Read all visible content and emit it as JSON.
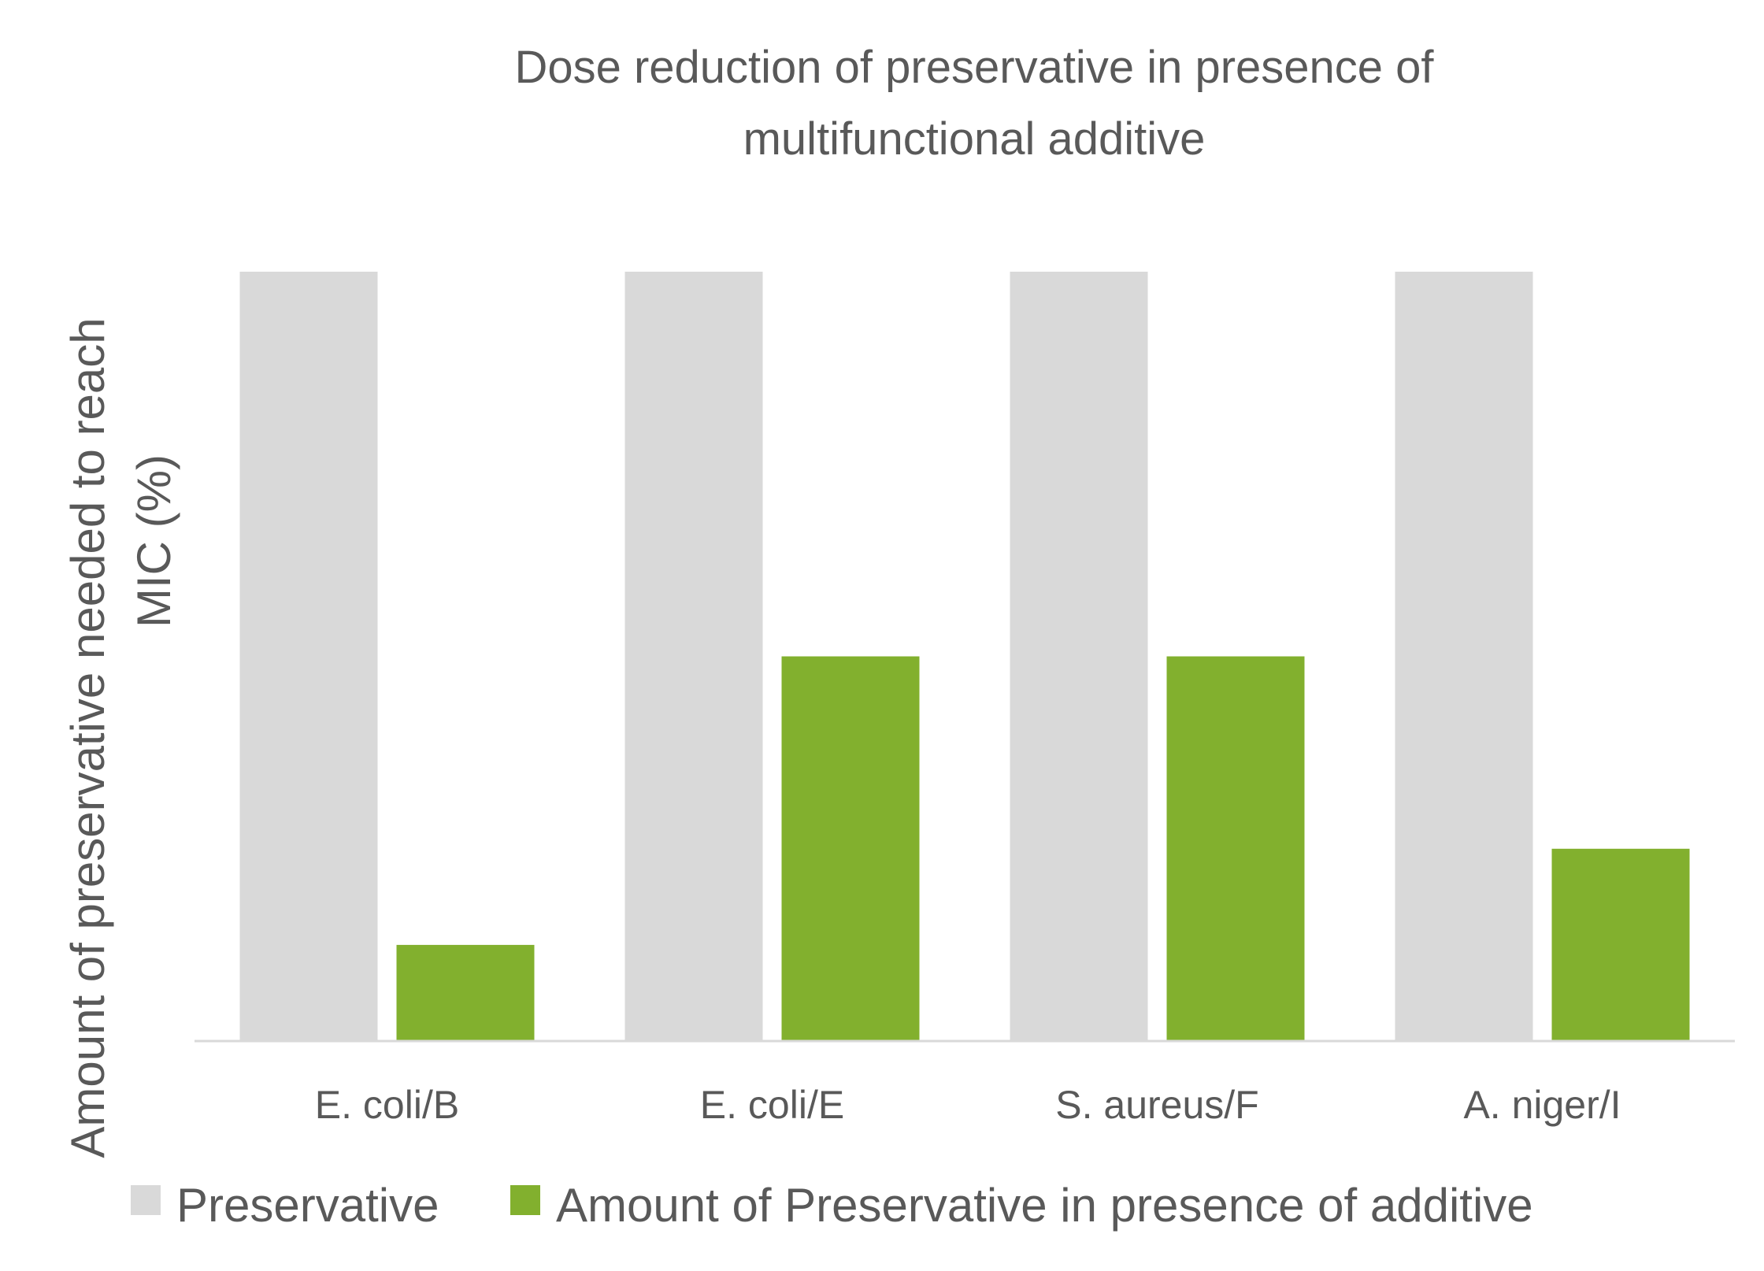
{
  "colors": {
    "background": "#ffffff",
    "text": "#595959",
    "axis_line": "#d9d9d9",
    "preservative": "#d9d9d9",
    "with_additive": "#82b02e"
  },
  "chart_data": {
    "type": "bar",
    "title_lines": [
      "Dose reduction of preservative in presence of",
      "multifunctional additive"
    ],
    "xlabel": "",
    "ylabel_lines": [
      "Amount of preservative needed to reach",
      "MIC (%)"
    ],
    "categories": [
      "E. coli/B",
      "E. coli/E",
      "S. aureus/F",
      "A. niger/I"
    ],
    "ylim": [
      0,
      100
    ],
    "grid": false,
    "legend_position": "bottom",
    "series": [
      {
        "name": "Preservative",
        "color": "#d9d9d9",
        "values": [
          100,
          100,
          100,
          100
        ]
      },
      {
        "name": "Amount of Preservative in presence of additive",
        "color": "#82b02e",
        "values": [
          12.5,
          50,
          50,
          25
        ]
      }
    ]
  }
}
